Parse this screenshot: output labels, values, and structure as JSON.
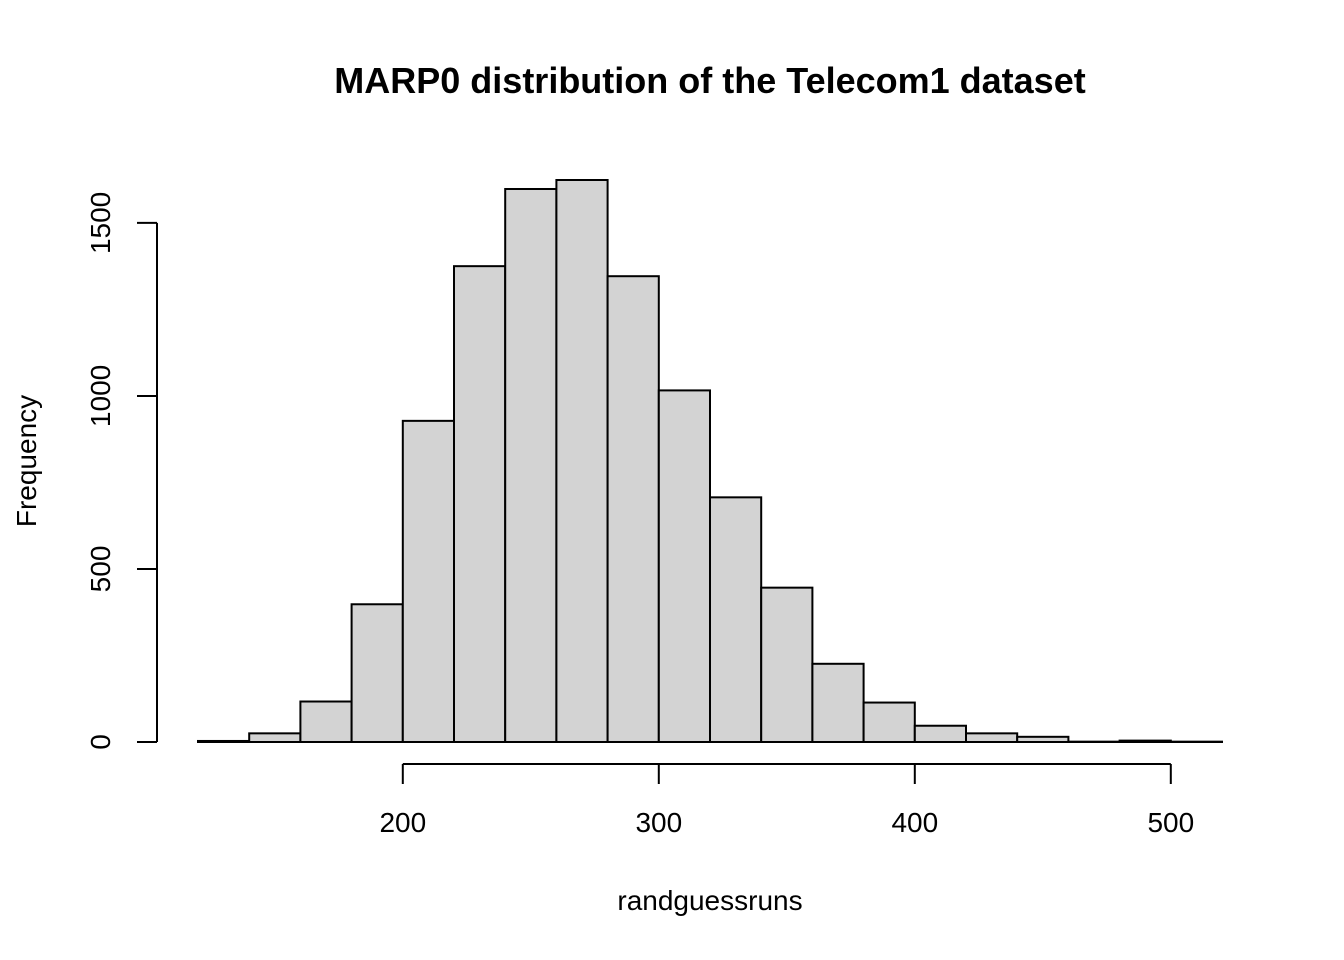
{
  "chart_data": {
    "type": "bar",
    "title": "MARP0 distribution of the Telecom1 dataset",
    "xlabel": "randguessruns",
    "ylabel": "Frequency",
    "bin_edges": [
      120,
      140,
      160,
      180,
      200,
      220,
      240,
      260,
      280,
      300,
      320,
      340,
      360,
      380,
      400,
      420,
      440,
      460,
      480,
      500,
      520
    ],
    "values": [
      3,
      25,
      117,
      398,
      928,
      1375,
      1598,
      1624,
      1346,
      1016,
      707,
      446,
      226,
      114,
      47,
      25,
      15,
      1,
      4,
      1
    ],
    "xlim": [
      120,
      520
    ],
    "ylim": [
      0,
      1624
    ],
    "x_ticks": [
      200,
      300,
      400,
      500
    ],
    "x_tick_labels": [
      "200",
      "300",
      "400",
      "500"
    ],
    "y_ticks": [
      0,
      500,
      1000,
      1500
    ],
    "y_tick_labels": [
      "0",
      "500",
      "1000",
      "1500"
    ],
    "colors": {
      "bar_fill": "#d3d3d3",
      "bar_stroke": "#000000"
    },
    "grid": false
  }
}
